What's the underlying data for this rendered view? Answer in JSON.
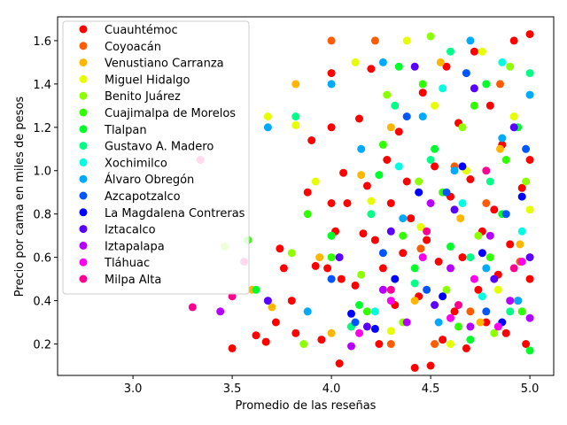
{
  "chart_data": {
    "type": "scatter",
    "xlabel": "Promedio de las reseñas",
    "ylabel": "Precio por cama en miles de pesos",
    "xlim": [
      2.62,
      5.12
    ],
    "ylim": [
      0.055,
      1.71
    ],
    "xticks": [
      "3.0",
      "3.5",
      "4.0",
      "4.5",
      "5.0"
    ],
    "yticks": [
      "0.2",
      "0.4",
      "0.6",
      "0.8",
      "1.0",
      "1.2",
      "1.4",
      "1.6"
    ],
    "legend_position": "top-left",
    "grid": false,
    "series": [
      {
        "name": "Cuauhtémoc",
        "color": "#ff0000",
        "points": [
          [
            3.5,
            0.18
          ],
          [
            3.62,
            0.24
          ],
          [
            3.67,
            0.21
          ],
          [
            3.72,
            0.3
          ],
          [
            3.74,
            0.64
          ],
          [
            3.76,
            0.55
          ],
          [
            3.8,
            0.4
          ],
          [
            3.82,
            0.25
          ],
          [
            3.88,
            0.9
          ],
          [
            3.9,
            1.14
          ],
          [
            3.92,
            0.56
          ],
          [
            3.95,
            0.22
          ],
          [
            3.98,
            0.55
          ],
          [
            4.0,
            1.45
          ],
          [
            4.0,
            1.2
          ],
          [
            4.0,
            0.85
          ],
          [
            4.02,
            0.72
          ],
          [
            4.04,
            0.11
          ],
          [
            4.05,
            0.5
          ],
          [
            4.06,
            0.99
          ],
          [
            4.08,
            0.85
          ],
          [
            4.1,
            0.28
          ],
          [
            4.12,
            0.47
          ],
          [
            4.14,
            1.24
          ],
          [
            4.16,
            0.71
          ],
          [
            4.18,
            0.93
          ],
          [
            4.2,
            1.47
          ],
          [
            4.22,
            0.68
          ],
          [
            4.24,
            0.2
          ],
          [
            4.26,
            0.55
          ],
          [
            4.28,
            1.05
          ],
          [
            4.3,
            0.85
          ],
          [
            4.32,
            0.38
          ],
          [
            4.34,
            1.18
          ],
          [
            4.36,
            0.62
          ],
          [
            4.38,
            0.95
          ],
          [
            4.4,
            0.78
          ],
          [
            4.42,
            0.09
          ],
          [
            4.44,
            0.42
          ],
          [
            4.46,
            1.36
          ],
          [
            4.48,
            0.68
          ],
          [
            4.5,
            0.1
          ],
          [
            4.52,
            1.02
          ],
          [
            4.54,
            0.58
          ],
          [
            4.56,
            0.22
          ],
          [
            4.58,
            1.48
          ],
          [
            4.6,
            0.88
          ],
          [
            4.62,
            0.35
          ],
          [
            4.64,
            1.22
          ],
          [
            4.66,
            0.6
          ],
          [
            4.68,
            0.18
          ],
          [
            4.7,
            0.96
          ],
          [
            4.72,
            1.55
          ],
          [
            4.74,
            0.45
          ],
          [
            4.76,
            0.72
          ],
          [
            4.78,
            0.3
          ],
          [
            4.8,
            1.3
          ],
          [
            4.82,
            0.82
          ],
          [
            4.84,
            0.52
          ],
          [
            4.86,
            1.12
          ],
          [
            4.88,
            0.25
          ],
          [
            4.9,
            0.66
          ],
          [
            4.92,
            1.6
          ],
          [
            4.94,
            0.4
          ],
          [
            4.96,
            0.92
          ],
          [
            4.98,
            0.2
          ],
          [
            5.0,
            1.63
          ],
          [
            5.0,
            0.5
          ],
          [
            5.0,
            1.05
          ]
        ]
      },
      {
        "name": "Coyoacán",
        "color": "#ff5b00",
        "points": [
          [
            4.0,
            1.6
          ],
          [
            4.22,
            1.6
          ],
          [
            4.3,
            0.2
          ],
          [
            4.45,
            0.64
          ],
          [
            4.52,
            0.2
          ],
          [
            4.62,
            1.02
          ],
          [
            4.7,
            0.35
          ],
          [
            4.78,
            0.85
          ],
          [
            4.85,
            1.4
          ],
          [
            4.95,
            0.58
          ]
        ]
      },
      {
        "name": "Venustiano Carranza",
        "color": "#ffb600",
        "points": [
          [
            3.6,
            0.45
          ],
          [
            3.7,
            0.37
          ],
          [
            3.82,
            1.4
          ],
          [
            3.88,
            0.35
          ],
          [
            3.94,
            0.6
          ],
          [
            4.0,
            0.25
          ],
          [
            4.15,
            0.98
          ],
          [
            4.3,
            1.2
          ],
          [
            4.42,
            0.4
          ],
          [
            4.55,
            1.5
          ],
          [
            4.65,
            0.78
          ],
          [
            4.75,
            0.3
          ],
          [
            4.85,
            1.1
          ],
          [
            4.95,
            0.66
          ]
        ]
      },
      {
        "name": "Miguel Hidalgo",
        "color": "#e5ff00",
        "points": [
          [
            3.68,
            1.25
          ],
          [
            3.82,
            1.21
          ],
          [
            3.92,
            0.95
          ],
          [
            4.12,
            1.5
          ],
          [
            4.2,
            0.86
          ],
          [
            4.3,
            0.26
          ],
          [
            4.38,
            1.6
          ],
          [
            4.45,
            0.74
          ],
          [
            4.52,
            1.3
          ],
          [
            4.6,
            0.2
          ],
          [
            4.68,
            1.0
          ],
          [
            4.76,
            1.55
          ],
          [
            4.84,
            0.45
          ],
          [
            4.92,
            1.25
          ],
          [
            5.0,
            0.82
          ]
        ]
      },
      {
        "name": "Benito Juárez",
        "color": "#8cff00",
        "points": [
          [
            3.46,
            0.65
          ],
          [
            3.8,
            0.62
          ],
          [
            3.86,
            0.2
          ],
          [
            4.0,
            0.7
          ],
          [
            4.15,
            0.52
          ],
          [
            4.28,
            1.35
          ],
          [
            4.36,
            0.3
          ],
          [
            4.44,
            0.95
          ],
          [
            4.5,
            1.62
          ],
          [
            4.58,
            0.45
          ],
          [
            4.66,
            1.2
          ],
          [
            4.74,
            0.7
          ],
          [
            4.82,
            0.25
          ],
          [
            4.9,
            1.48
          ],
          [
            4.98,
            0.95
          ]
        ]
      },
      {
        "name": "Cuajimalpa de Morelos",
        "color": "#30ff00",
        "points": [
          [
            3.58,
            0.68
          ],
          [
            3.88,
            0.8
          ],
          [
            4.0,
            0.6
          ],
          [
            4.18,
            0.35
          ],
          [
            4.26,
            1.12
          ],
          [
            4.36,
            0.7
          ],
          [
            4.46,
            1.4
          ],
          [
            4.56,
            0.9
          ],
          [
            4.64,
            0.28
          ],
          [
            4.72,
            1.3
          ],
          [
            4.8,
            0.6
          ],
          [
            4.88,
            1.05
          ],
          [
            4.96,
            0.35
          ]
        ]
      },
      {
        "name": "Tlalpan",
        "color": "#00ff2a",
        "points": [
          [
            3.62,
            0.45
          ],
          [
            4.0,
            0.7
          ],
          [
            4.14,
            0.38
          ],
          [
            4.24,
            0.98
          ],
          [
            4.34,
            1.48
          ],
          [
            4.42,
            0.55
          ],
          [
            4.52,
            1.1
          ],
          [
            4.6,
            0.65
          ],
          [
            4.7,
            0.22
          ],
          [
            4.78,
            1.4
          ],
          [
            4.86,
            0.8
          ],
          [
            4.94,
            1.2
          ],
          [
            5.0,
            0.17
          ]
        ]
      },
      {
        "name": "Gustavo A. Madero",
        "color": "#00ff86",
        "points": [
          [
            3.82,
            1.25
          ],
          [
            4.1,
            0.28
          ],
          [
            4.2,
            0.8
          ],
          [
            4.32,
            1.3
          ],
          [
            4.42,
            0.48
          ],
          [
            4.5,
            1.05
          ],
          [
            4.6,
            1.55
          ],
          [
            4.7,
            0.6
          ],
          [
            4.8,
            0.95
          ],
          [
            4.9,
            0.35
          ],
          [
            5.0,
            1.45
          ]
        ]
      },
      {
        "name": "Xochimilco",
        "color": "#00ffe1",
        "points": [
          [
            4.22,
            0.35
          ],
          [
            4.34,
            1.02
          ],
          [
            4.46,
            0.6
          ],
          [
            4.56,
            1.38
          ],
          [
            4.66,
            0.85
          ],
          [
            4.76,
            0.42
          ],
          [
            4.86,
            1.5
          ],
          [
            4.96,
            0.72
          ]
        ]
      },
      {
        "name": "Álvaro Obregón",
        "color": "#00aaff",
        "points": [
          [
            3.68,
            1.2
          ],
          [
            3.88,
            0.35
          ],
          [
            4.0,
            1.4
          ],
          [
            4.15,
            1.1
          ],
          [
            4.26,
            1.5
          ],
          [
            4.36,
            0.78
          ],
          [
            4.46,
            1.25
          ],
          [
            4.54,
            0.3
          ],
          [
            4.62,
            1.0
          ],
          [
            4.7,
            1.6
          ],
          [
            4.78,
            0.55
          ],
          [
            4.86,
            1.15
          ],
          [
            4.94,
            0.4
          ],
          [
            5.0,
            1.35
          ]
        ]
      },
      {
        "name": "Azcapotzalco",
        "color": "#0055ff",
        "points": [
          [
            4.0,
            0.5
          ],
          [
            4.12,
            0.3
          ],
          [
            4.26,
            0.62
          ],
          [
            4.38,
            1.25
          ],
          [
            4.48,
            0.45
          ],
          [
            4.58,
            0.9
          ],
          [
            4.68,
            1.45
          ],
          [
            4.78,
            0.35
          ],
          [
            4.88,
            0.8
          ],
          [
            4.98,
            1.1
          ]
        ]
      },
      {
        "name": "La Magdalena Contreras",
        "color": "#0000ff",
        "points": [
          [
            4.1,
            0.34
          ],
          [
            4.22,
            0.27
          ],
          [
            4.32,
            0.5
          ],
          [
            4.44,
            0.9
          ],
          [
            4.56,
            0.42
          ],
          [
            4.66,
            1.02
          ],
          [
            4.76,
            0.62
          ],
          [
            4.86,
            0.3
          ],
          [
            4.96,
            0.88
          ]
        ]
      },
      {
        "name": "Iztacalco",
        "color": "#5a00ff",
        "points": [
          [
            3.68,
            0.4
          ],
          [
            4.04,
            0.6
          ],
          [
            4.18,
            0.28
          ],
          [
            4.3,
            0.72
          ],
          [
            4.42,
            1.48
          ],
          [
            4.52,
            0.38
          ],
          [
            4.62,
            0.82
          ],
          [
            4.72,
            1.38
          ],
          [
            4.82,
            0.5
          ],
          [
            4.92,
            1.2
          ],
          [
            5.0,
            0.6
          ]
        ]
      },
      {
        "name": "Iztapalapa",
        "color": "#b600ff",
        "points": [
          [
            3.44,
            0.35
          ],
          [
            4.1,
            0.19
          ],
          [
            4.26,
            0.45
          ],
          [
            4.38,
            0.3
          ],
          [
            4.5,
            0.85
          ],
          [
            4.6,
            0.55
          ],
          [
            4.7,
            0.28
          ],
          [
            4.8,
            0.7
          ],
          [
            4.9,
            0.4
          ],
          [
            5.0,
            0.32
          ]
        ]
      },
      {
        "name": "Tláhuac",
        "color": "#ff00ed",
        "points": [
          [
            4.14,
            0.25
          ],
          [
            4.3,
            0.4
          ],
          [
            4.46,
            0.6
          ],
          [
            4.6,
            0.32
          ],
          [
            4.72,
            0.5
          ],
          [
            4.84,
            0.28
          ],
          [
            4.96,
            0.58
          ]
        ]
      },
      {
        "name": "Milpa Alta",
        "color": "#ff0091",
        "points": [
          [
            3.34,
            1.05
          ],
          [
            3.3,
            0.37
          ],
          [
            3.5,
            0.42
          ],
          [
            3.56,
            0.58
          ],
          [
            4.3,
            0.45
          ],
          [
            4.48,
            0.72
          ],
          [
            4.64,
            0.38
          ],
          [
            4.78,
            1.0
          ],
          [
            4.92,
            0.55
          ]
        ]
      }
    ]
  }
}
